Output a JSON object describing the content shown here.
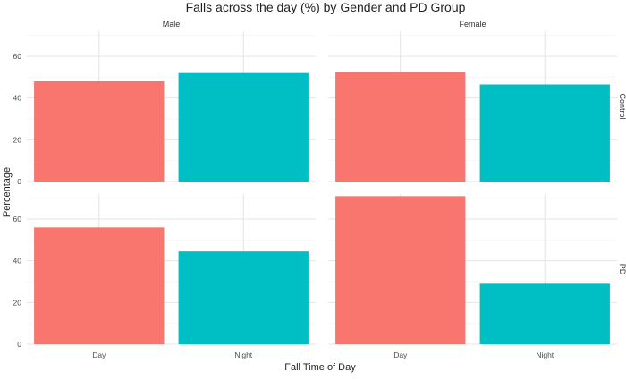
{
  "chart_data": {
    "type": "bar",
    "title": "Falls across the day (%) by Gender and PD Group",
    "xlabel": "Fall Time of Day",
    "ylabel": "Percentage",
    "categories": [
      "Day",
      "Night"
    ],
    "facet_cols": [
      "Male",
      "Female"
    ],
    "facet_rows": [
      "Control",
      "PD"
    ],
    "ylim": [
      0,
      72
    ],
    "yticks": [
      "0",
      "20",
      "40",
      "60"
    ],
    "grid": true,
    "legend": "none",
    "bar_colors": [
      "#F8766D",
      "#00BFC4"
    ],
    "panels": [
      {
        "col": "Male",
        "row": "Control",
        "values": [
          48,
          52
        ]
      },
      {
        "col": "Female",
        "row": "Control",
        "values": [
          52.5,
          46.5
        ]
      },
      {
        "col": "Male",
        "row": "PD",
        "values": [
          56,
          44.5
        ]
      },
      {
        "col": "Female",
        "row": "PD",
        "values": [
          71,
          29
        ]
      }
    ]
  }
}
